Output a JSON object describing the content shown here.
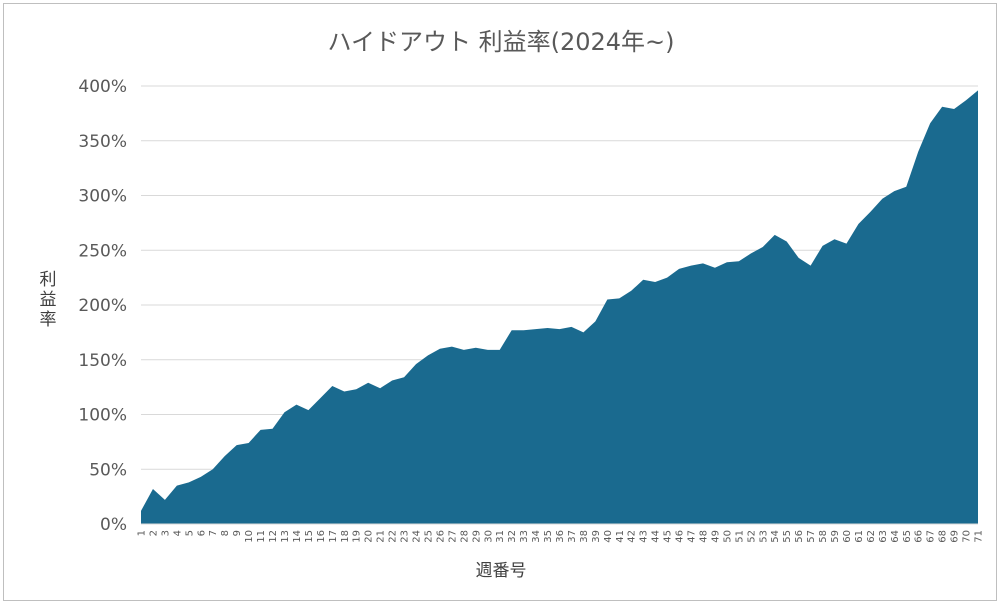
{
  "chart_data": {
    "type": "area",
    "title": "ハイドアウト 利益率(2024年~)",
    "xlabel": "週番号",
    "ylabel": "利益率",
    "ylim": [
      0,
      400
    ],
    "yticks": [
      "0%",
      "50%",
      "100%",
      "150%",
      "200%",
      "250%",
      "300%",
      "350%",
      "400%"
    ],
    "ytick_values": [
      0,
      50,
      100,
      150,
      200,
      250,
      300,
      350,
      400
    ],
    "x": [
      1,
      2,
      3,
      4,
      5,
      6,
      7,
      8,
      9,
      10,
      11,
      12,
      13,
      14,
      15,
      16,
      17,
      18,
      19,
      20,
      21,
      22,
      23,
      24,
      25,
      26,
      27,
      28,
      29,
      30,
      31,
      32,
      33,
      34,
      35,
      36,
      37,
      38,
      39,
      40,
      41,
      42,
      43,
      44,
      45,
      46,
      47,
      48,
      49,
      50,
      51,
      52,
      53,
      54,
      55,
      56,
      57,
      58,
      59,
      60,
      61,
      62,
      63,
      64,
      65,
      66,
      67,
      68,
      69,
      70,
      71
    ],
    "series": [
      {
        "name": "",
        "color": "#1a6a8f",
        "values": [
          12,
          32,
          22,
          35,
          38,
          43,
          50,
          62,
          72,
          74,
          86,
          87,
          102,
          109,
          104,
          115,
          126,
          121,
          123,
          129,
          124,
          131,
          134,
          146,
          154,
          160,
          162,
          159,
          161,
          159,
          159,
          177,
          177,
          178,
          179,
          178,
          180,
          175,
          185,
          205,
          206,
          213,
          223,
          221,
          225,
          233,
          236,
          238,
          234,
          239,
          240,
          247,
          253,
          264,
          258,
          243,
          236,
          254,
          260,
          256,
          274,
          285,
          297,
          304,
          308,
          340,
          366,
          381,
          379,
          387,
          396
        ]
      }
    ],
    "grid": true,
    "legend": "none"
  }
}
